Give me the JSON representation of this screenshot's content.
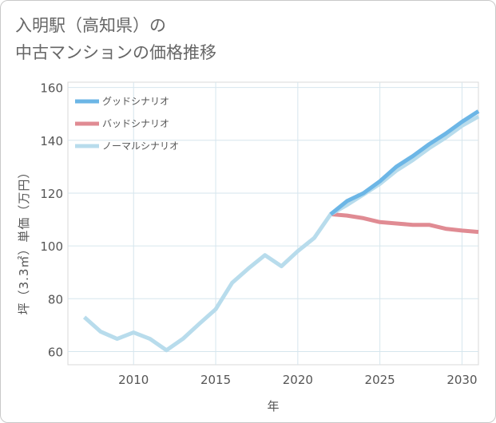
{
  "chart_data": {
    "type": "line",
    "title_line1": "入明駅（高知県）の",
    "title_line2": "中古マンションの価格推移",
    "xlabel": "年",
    "ylabel": "坪（3.3㎡）単価（万円）",
    "xlim": [
      2006,
      2031
    ],
    "ylim": [
      55,
      162
    ],
    "x_ticks": [
      2010,
      2015,
      2020,
      2025,
      2030
    ],
    "y_ticks": [
      60,
      80,
      100,
      120,
      140,
      160
    ],
    "grid": true,
    "legend_position": "top-left",
    "series": [
      {
        "name": "グッドシナリオ",
        "color": "#6cb6e6",
        "x": [
          2022,
          2023,
          2024,
          2025,
          2026,
          2027,
          2028,
          2029,
          2030,
          2031
        ],
        "values": [
          112,
          117,
          120,
          124.5,
          130,
          134,
          138.5,
          142.5,
          147,
          151
        ]
      },
      {
        "name": "バッドシナリオ",
        "color": "#e08b93",
        "x": [
          2022,
          2023,
          2024,
          2025,
          2026,
          2027,
          2028,
          2029,
          2030,
          2031
        ],
        "values": [
          112,
          111.5,
          110.5,
          109,
          108.5,
          108,
          108,
          106.5,
          105.8,
          105.3
        ]
      },
      {
        "name": "ノーマルシナリオ",
        "color": "#b8dcec",
        "x": [
          2007,
          2008,
          2009,
          2010,
          2011,
          2012,
          2013,
          2014,
          2015,
          2016,
          2017,
          2018,
          2019,
          2020,
          2021,
          2022,
          2023,
          2024,
          2025,
          2026,
          2027,
          2028,
          2029,
          2030,
          2031
        ],
        "values": [
          73,
          67.5,
          64.8,
          67.2,
          64.8,
          60.5,
          64.8,
          70.5,
          76,
          86,
          91.5,
          96.5,
          92.3,
          98,
          103,
          112,
          115.5,
          119.5,
          123.5,
          128.5,
          132.5,
          137,
          141,
          145.5,
          149
        ]
      }
    ]
  }
}
